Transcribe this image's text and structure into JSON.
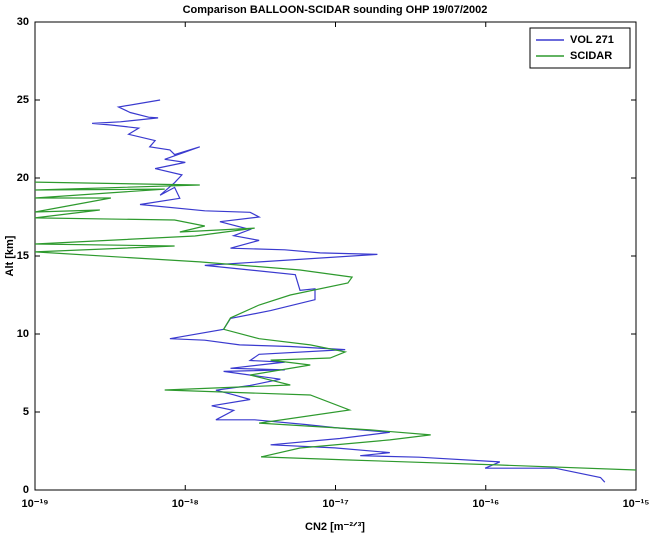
{
  "chart_data": {
    "type": "line",
    "title": "Comparison BALLOON-SCIDAR sounding OHP 19/07/2002",
    "xlabel": "CN2 [m⁻²ᐟ³]",
    "ylabel": "Alt [km]",
    "xscale": "log",
    "xlim": [
      1e-19,
      1e-15
    ],
    "xticks": [
      {
        "value": 1e-19,
        "label": "10⁻¹⁹"
      },
      {
        "value": 1e-18,
        "label": "10⁻¹⁸"
      },
      {
        "value": 1e-17,
        "label": "10⁻¹⁷"
      },
      {
        "value": 1e-16,
        "label": "10⁻¹⁶"
      },
      {
        "value": 1e-15,
        "label": "10⁻¹⁵"
      }
    ],
    "ylim": [
      0,
      30
    ],
    "yticks": [
      0,
      5,
      10,
      15,
      20,
      25,
      30
    ],
    "grid": false,
    "legend": "upper right",
    "series": [
      {
        "name": "VOL 271",
        "color": "#3a3acf",
        "x": [
          6.8e-19,
          3.6e-19,
          4.3e-19,
          5.7e-19,
          6.6e-19,
          3.7e-19,
          2.4e-19,
          3.2e-19,
          4.9e-19,
          4.2e-19,
          6.3e-19,
          5.8e-19,
          7.9e-19,
          8.5e-19,
          1.25e-18,
          7.3e-19,
          1e-18,
          6.3e-19,
          9.5e-19,
          8.5e-19,
          6.8e-19,
          8.5e-19,
          9.2e-19,
          5e-19,
          1.35e-18,
          2.7e-18,
          3.1e-18,
          1.7e-18,
          2.7e-18,
          2.1e-18,
          3.1e-18,
          2e-18,
          4.6e-18,
          7.9e-18,
          1.9e-17,
          1.35e-18,
          2.7e-18,
          5.4e-18,
          5.8e-18,
          7.3e-18,
          7.3e-18,
          3.7e-18,
          2e-18,
          1.8e-18,
          7.9e-19,
          1.35e-18,
          2.3e-18,
          5e-18,
          1.16e-17,
          3.1e-18,
          2.7e-18,
          4.6e-18,
          2e-18,
          4.6e-18,
          1.8e-18,
          4.3e-18,
          2.7e-18,
          1.6e-18,
          2.1e-18,
          2.7e-18,
          1.5e-18,
          2.1e-18,
          1.6e-18,
          2.9e-18,
          6.3e-18,
          9.9e-18,
          2.3e-17,
          1.07e-17,
          3.7e-18,
          9.9e-18,
          2.3e-17,
          1.46e-17,
          3.6e-17,
          1.24e-16,
          9.9e-17,
          2.9e-16,
          5.8e-16,
          6.2e-16
        ],
        "values": [
          25.0,
          24.55,
          24.2,
          23.9,
          23.85,
          23.6,
          23.5,
          23.4,
          23.2,
          22.8,
          22.4,
          22.0,
          21.8,
          21.5,
          22.0,
          21.2,
          21.0,
          20.6,
          20.2,
          19.7,
          18.9,
          19.4,
          18.7,
          18.3,
          17.9,
          17.8,
          17.5,
          17.2,
          16.7,
          16.3,
          16.0,
          15.5,
          15.4,
          15.2,
          15.1,
          14.4,
          14.1,
          13.8,
          12.8,
          12.9,
          12.2,
          11.5,
          11.0,
          10.3,
          9.7,
          9.6,
          9.3,
          9.2,
          9.0,
          8.7,
          8.3,
          8.2,
          7.8,
          7.7,
          7.6,
          7.1,
          6.7,
          6.4,
          6.1,
          5.8,
          5.4,
          5.1,
          4.5,
          4.5,
          4.2,
          4.0,
          3.7,
          3.3,
          2.9,
          2.7,
          2.4,
          2.2,
          2.1,
          1.8,
          1.4,
          1.4,
          0.8,
          0.5
        ]
      },
      {
        "name": "SCIDAR",
        "color": "#2e9a2e",
        "x": [
          1e-19,
          1.25e-18,
          1e-19,
          7.3e-19,
          1e-19,
          3.2e-19,
          1e-19,
          2.7e-19,
          1e-19,
          8.5e-19,
          1.35e-18,
          9.2e-19,
          2.9e-18,
          1.16e-18,
          1e-19,
          8.5e-19,
          1e-19,
          1.25e-18,
          5.8e-18,
          1.29e-17,
          1.21e-17,
          5e-18,
          3.1e-18,
          2e-18,
          1.8e-18,
          3.1e-18,
          6.8e-18,
          1.16e-17,
          9.2e-18,
          3.7e-18,
          6.8e-18,
          2.7e-18,
          5e-18,
          7.3e-19,
          6.8e-18,
          1.24e-17,
          3.1e-18,
          1.7e-17,
          4.3e-17,
          2.3e-17,
          5.8e-18,
          3.2e-18,
          1.24e-17,
          1.24e-16,
          1e-15
        ],
        "values": [
          19.74,
          19.55,
          19.23,
          19.29,
          18.72,
          18.72,
          17.82,
          17.95,
          17.44,
          17.31,
          16.92,
          16.54,
          16.79,
          16.28,
          15.77,
          15.64,
          15.26,
          14.62,
          14.1,
          13.65,
          13.27,
          12.5,
          11.86,
          11.03,
          10.3,
          9.7,
          9.3,
          8.85,
          8.46,
          8.33,
          8.01,
          7.37,
          6.73,
          6.41,
          6.09,
          5.13,
          4.29,
          3.85,
          3.53,
          3.21,
          2.69,
          2.12,
          1.92,
          1.6,
          1.28
        ]
      }
    ]
  }
}
